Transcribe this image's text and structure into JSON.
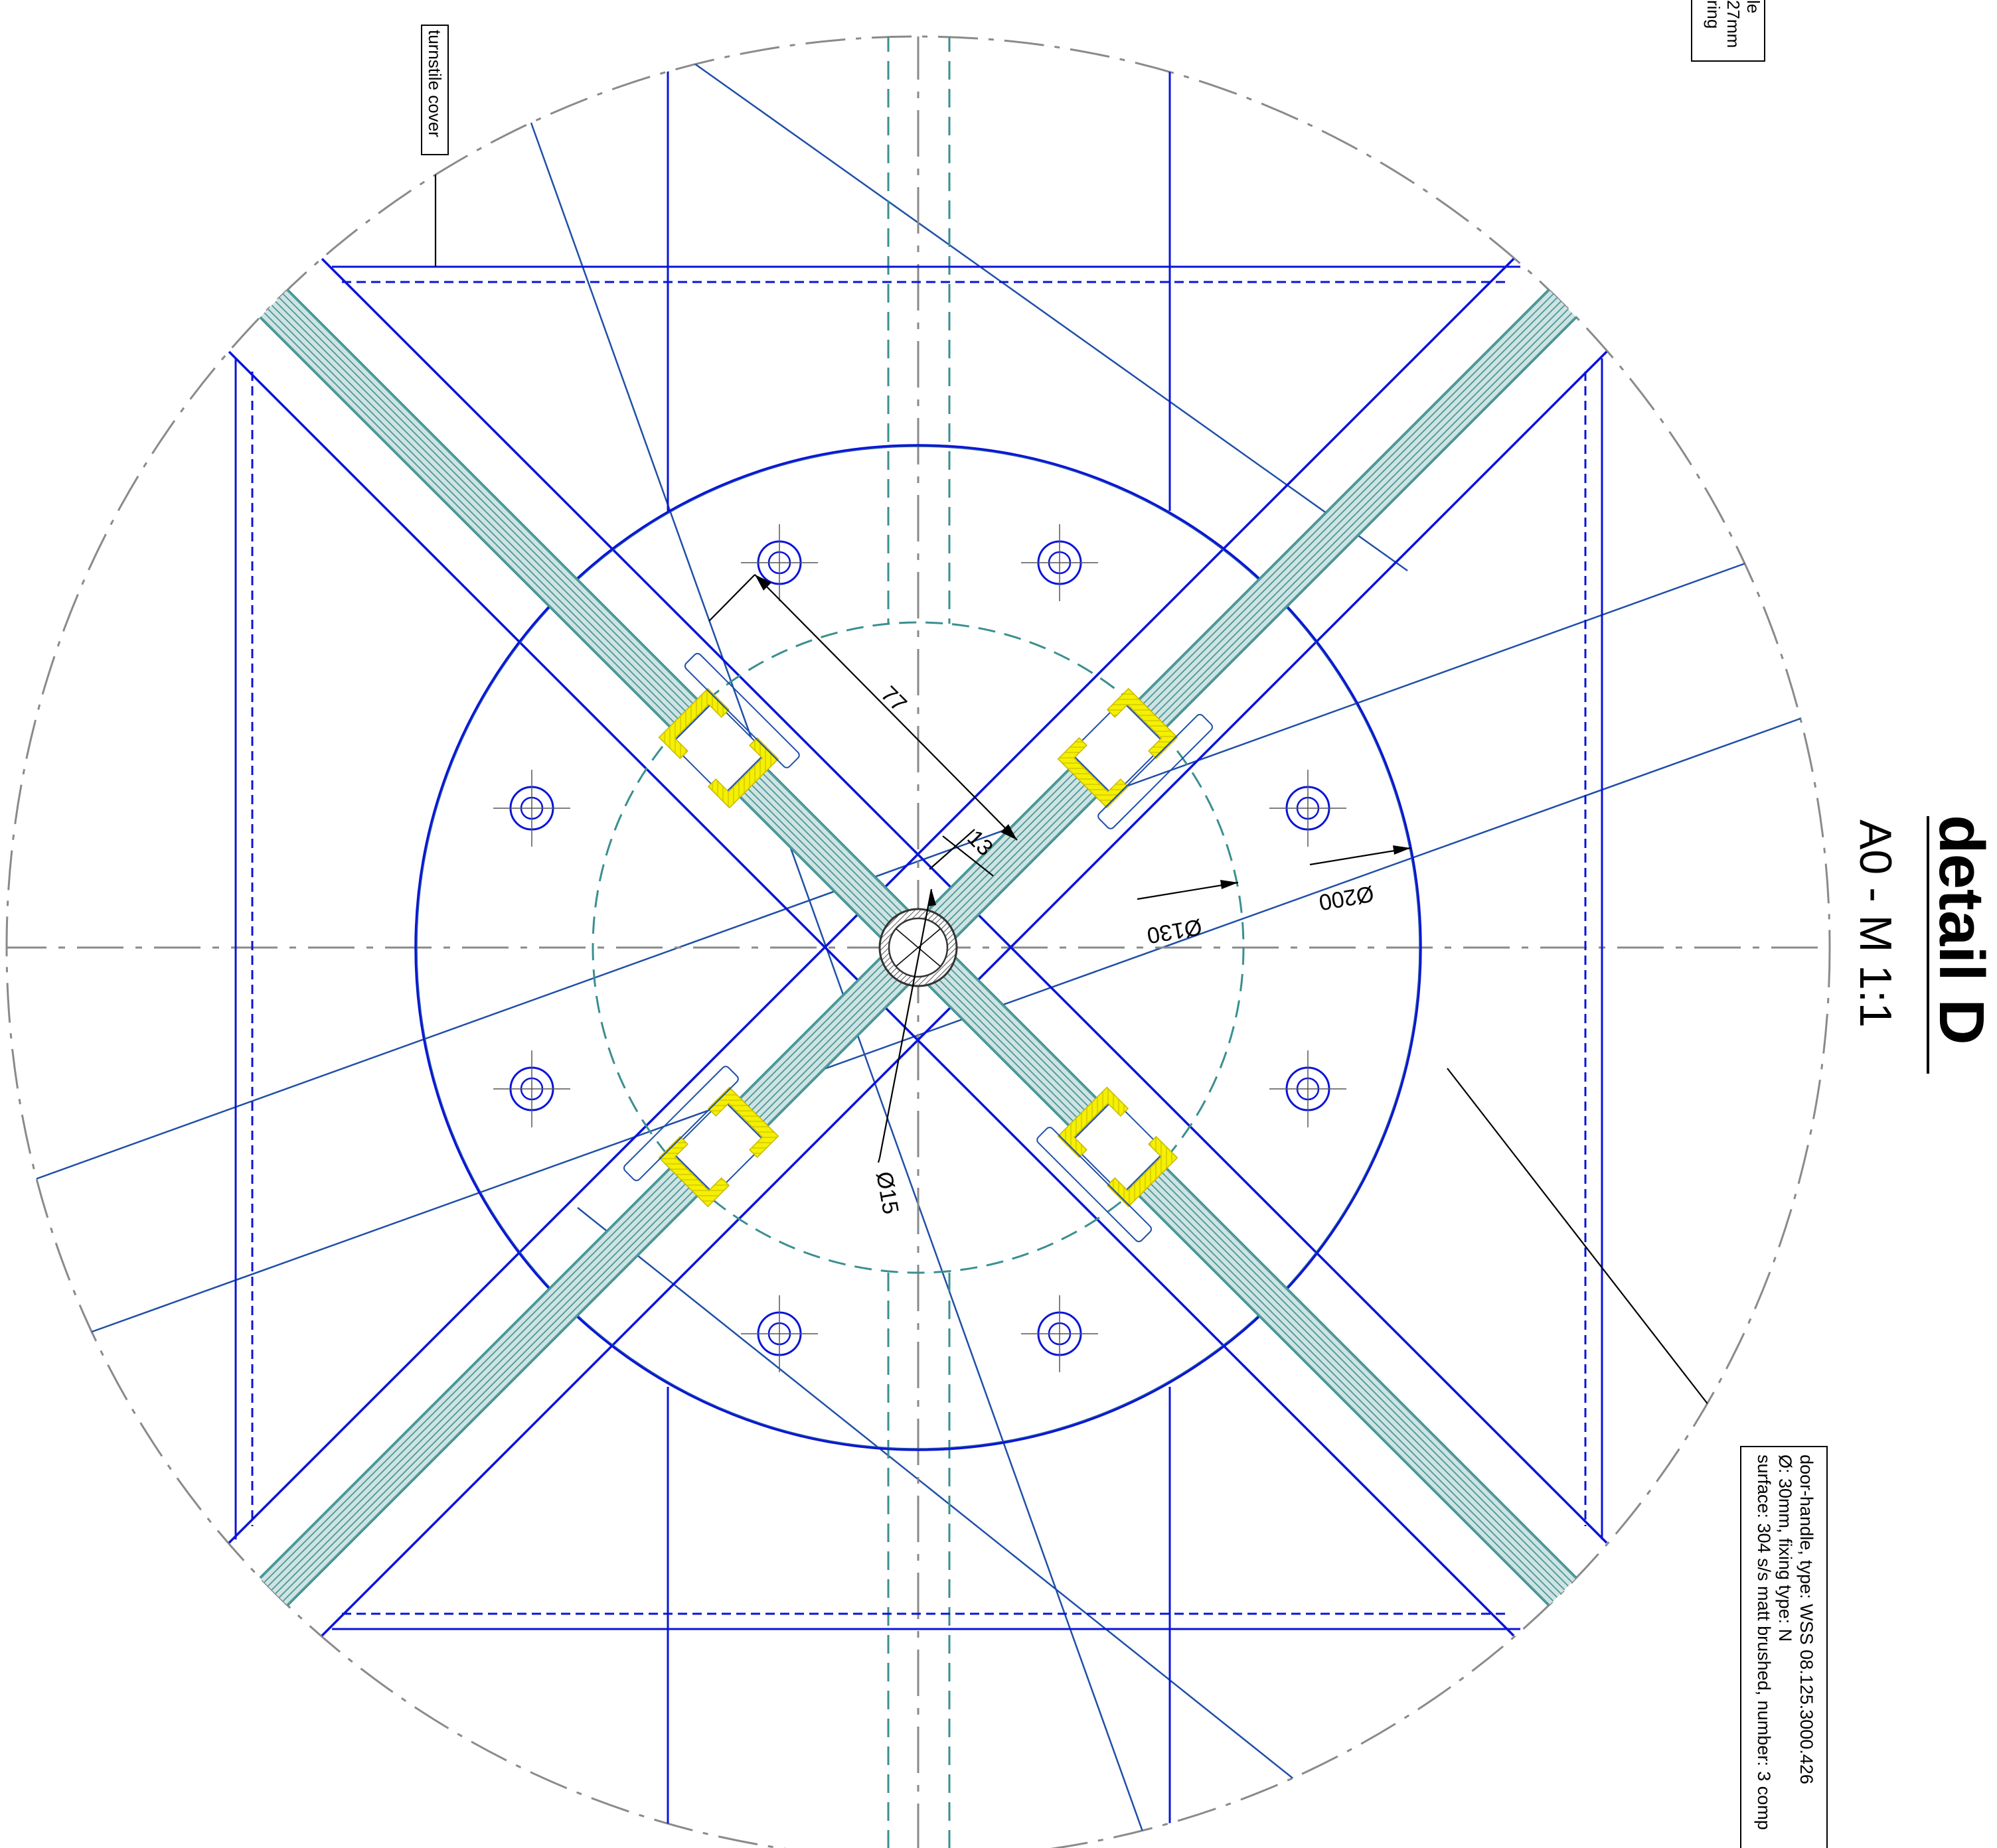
{
  "title": {
    "main": "detail D",
    "scale": "A0 - M 1:1"
  },
  "callouts": {
    "turnstile_cover": "turnstile cover",
    "top_right_clipped": [
      "le",
      "27mm",
      "ring"
    ],
    "door_handle": [
      "door-handle, type: WSS 08.125.3000.426",
      "Ø: 30mm, fixing type: N",
      "surface: 304 s/s matt brushed, number: 3 comp"
    ]
  },
  "dimensions": {
    "d200": "Ø200",
    "d130": "Ø130",
    "d15": "Ø15",
    "len77": "77",
    "len13": "13"
  },
  "colors": {
    "steel_blue": "#0a14d8",
    "thin_blue": "#1f4fa8",
    "teal": "#3a8f8f",
    "glass_fill": "#cfe3e3",
    "gasket_yellow": "#f4f000",
    "centerline": "#8a8a8a"
  }
}
